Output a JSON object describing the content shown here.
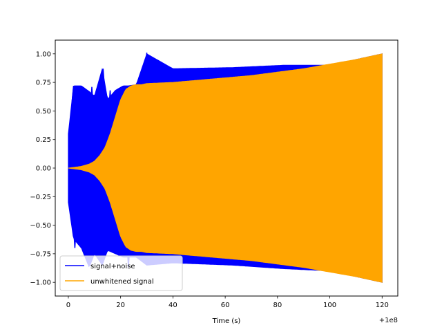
{
  "chart_data": {
    "type": "line",
    "title": "",
    "xlabel": "Time (s)",
    "ylabel": "",
    "x_offset_label": "+1e8",
    "xlim": [
      -5,
      126
    ],
    "ylim": [
      -1.12,
      1.12
    ],
    "x_ticks": [
      0,
      20,
      40,
      60,
      80,
      100,
      120
    ],
    "x_tick_labels": [
      "0",
      "20",
      "40",
      "60",
      "80",
      "100",
      "120"
    ],
    "y_ticks": [
      1.0,
      0.75,
      0.5,
      0.25,
      0.0,
      -0.25,
      -0.5,
      -0.75,
      -1.0
    ],
    "y_tick_labels": [
      "1.00",
      "0.75",
      "0.50",
      "0.25",
      "0.00",
      "−0.25",
      "−0.50",
      "−0.75",
      "−1.00"
    ],
    "grid": false,
    "legend_position": "lower-left",
    "series": [
      {
        "name": "signal+noise",
        "color": "#0000ff",
        "envelope_upper": {
          "x": [
            0,
            2,
            5,
            8,
            10,
            13,
            15,
            18,
            21,
            23,
            26,
            30,
            40,
            63,
            82,
            100,
            120
          ],
          "y": [
            0.3,
            0.72,
            0.72,
            0.67,
            0.63,
            0.87,
            0.6,
            0.68,
            0.72,
            0.72,
            0.73,
            1.0,
            0.87,
            0.88,
            0.9,
            0.9,
            1.0
          ]
        },
        "envelope_lower": {
          "x": [
            0,
            2,
            5,
            8,
            10,
            13,
            15,
            18,
            21,
            23,
            26,
            30,
            40,
            63,
            82,
            100,
            120
          ],
          "y": [
            -0.3,
            -0.62,
            -0.7,
            -0.87,
            -0.75,
            -0.85,
            -0.72,
            -0.75,
            -0.78,
            -0.78,
            -0.78,
            -0.85,
            -0.83,
            -0.85,
            -0.88,
            -0.9,
            -1.0
          ]
        },
        "spikes": [
          {
            "x": 2.0,
            "y": 0.72
          },
          {
            "x": 3.5,
            "y": 0.72
          },
          {
            "x": 5.0,
            "y": 0.67
          },
          {
            "x": 7.0,
            "y": 0.63
          },
          {
            "x": 9.0,
            "y": 0.71
          },
          {
            "x": 11.5,
            "y": 0.61
          },
          {
            "x": 13.3,
            "y": 0.87
          },
          {
            "x": 16.0,
            "y": 0.68
          },
          {
            "x": 19.5,
            "y": 0.67
          },
          {
            "x": 24.0,
            "y": 0.72
          },
          {
            "x": 30.0,
            "y": 1.01
          },
          {
            "x": 36.0,
            "y": 0.87
          },
          {
            "x": 63.5,
            "y": 0.88
          },
          {
            "x": 82.5,
            "y": 0.9
          },
          {
            "x": 2.5,
            "y": -0.7
          },
          {
            "x": 6.0,
            "y": -0.62
          },
          {
            "x": 8.0,
            "y": -0.58
          },
          {
            "x": 10.5,
            "y": -0.55
          },
          {
            "x": 12.0,
            "y": -0.72
          },
          {
            "x": 14.0,
            "y": -0.66
          },
          {
            "x": 23.0,
            "y": -0.87
          },
          {
            "x": 35.0,
            "y": -0.84
          },
          {
            "x": 38.5,
            "y": -0.82
          },
          {
            "x": 40.0,
            "y": -0.81
          }
        ]
      },
      {
        "name": "unwhitened signal",
        "color": "#ffa500",
        "envelope_upper": {
          "x": [
            0,
            5,
            8,
            10,
            12,
            14,
            16,
            18,
            20,
            22,
            24,
            26,
            28,
            30,
            40,
            50,
            60,
            70,
            80,
            90,
            100,
            110,
            120
          ],
          "y": [
            0.0,
            0.015,
            0.035,
            0.06,
            0.11,
            0.18,
            0.3,
            0.45,
            0.6,
            0.69,
            0.72,
            0.73,
            0.73,
            0.74,
            0.75,
            0.77,
            0.79,
            0.81,
            0.84,
            0.87,
            0.91,
            0.95,
            1.0
          ]
        },
        "envelope_lower": {
          "x": [
            0,
            5,
            8,
            10,
            12,
            14,
            16,
            18,
            20,
            22,
            24,
            26,
            28,
            30,
            40,
            50,
            60,
            70,
            80,
            90,
            100,
            110,
            120
          ],
          "y": [
            0.0,
            -0.015,
            -0.035,
            -0.06,
            -0.11,
            -0.18,
            -0.3,
            -0.45,
            -0.6,
            -0.69,
            -0.72,
            -0.73,
            -0.73,
            -0.74,
            -0.75,
            -0.77,
            -0.79,
            -0.81,
            -0.84,
            -0.87,
            -0.91,
            -0.95,
            -1.0
          ]
        }
      }
    ]
  },
  "colors": {
    "background": "#ffffff",
    "axes": "#000000"
  }
}
